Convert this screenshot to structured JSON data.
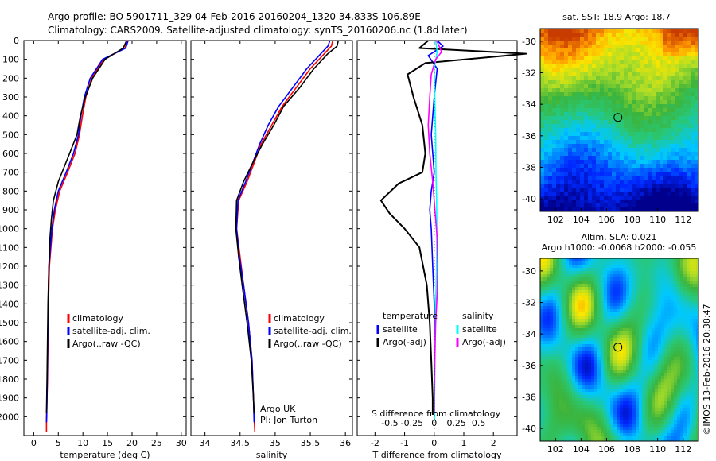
{
  "header": {
    "line1": "Argo profile: BO 5901711_329 04-Feb-2016 20160204_1320 34.833S 106.89E",
    "line2": "Climatology: CARS2009. Satellite-adjusted climatology: synTS_20160206.nc (1.8d later)"
  },
  "colors": {
    "climatology": "#ff0000",
    "satellite": "#0000ff",
    "argo": "#000000",
    "sal_satellite": "#00ffff",
    "sal_argo": "#ff00ff"
  },
  "chart_data": [
    {
      "type": "line",
      "xlabel": "temperature (deg C)",
      "ylabel": "",
      "xlim": [
        -2,
        31
      ],
      "ylim": [
        2100,
        0
      ],
      "xticks": [
        "0",
        "5",
        "10",
        "15",
        "20",
        "25",
        "30"
      ],
      "xtick_values": [
        0,
        5,
        10,
        15,
        20,
        25,
        30
      ],
      "yticks": [
        "0",
        "100",
        "200",
        "300",
        "400",
        "500",
        "600",
        "700",
        "800",
        "900",
        "1000",
        "1100",
        "1200",
        "1300",
        "1400",
        "1500",
        "1600",
        "1700",
        "1800",
        "1900",
        "2000"
      ],
      "ytick_values": [
        0,
        100,
        200,
        300,
        400,
        500,
        600,
        700,
        800,
        900,
        1000,
        1100,
        1200,
        1300,
        1400,
        1500,
        1600,
        1700,
        1800,
        1900,
        2000
      ],
      "legend": [
        "climatology",
        "satellite-adj. clim.",
        "Argo(..raw -QC)"
      ],
      "series": [
        {
          "name": "climatology",
          "color": "#ff0000",
          "x": [
            19.0,
            18.6,
            14.2,
            11.8,
            10.6,
            9.9,
            9.3,
            8.4,
            6.9,
            5.3,
            4.4,
            3.8,
            3.5,
            3.2,
            3.0,
            2.9,
            2.8,
            2.7,
            2.6,
            2.6,
            2.6
          ],
          "y": [
            0,
            40,
            100,
            200,
            300,
            400,
            500,
            600,
            700,
            800,
            900,
            1000,
            1100,
            1200,
            1400,
            1600,
            1800,
            1900,
            2000,
            2050,
            2080
          ]
        },
        {
          "name": "satellite-adj. clim.",
          "color": "#0000ff",
          "x": [
            19.2,
            18.7,
            14.0,
            11.5,
            10.3,
            9.6,
            9.1,
            8.1,
            6.6,
            5.0,
            4.2,
            3.7,
            3.4,
            3.1,
            2.95,
            2.85,
            2.75,
            2.7,
            2.65,
            2.6
          ],
          "y": [
            0,
            40,
            100,
            200,
            300,
            400,
            500,
            600,
            700,
            800,
            900,
            1000,
            1100,
            1200,
            1400,
            1600,
            1800,
            1900,
            2000,
            2030
          ]
        },
        {
          "name": "Argo(..raw -QC)",
          "color": "#000000",
          "x": [
            18.9,
            18.2,
            14.5,
            12.0,
            10.5,
            9.5,
            8.8,
            7.3,
            5.0,
            4.0,
            3.6,
            3.3,
            3.1,
            2.9,
            2.8,
            2.7,
            2.6
          ],
          "y": [
            0,
            40,
            100,
            200,
            300,
            400,
            500,
            600,
            750,
            850,
            950,
            1050,
            1200,
            1400,
            1600,
            1800,
            1980
          ]
        }
      ]
    },
    {
      "type": "line",
      "xlabel": "salinity",
      "xlim": [
        33.8,
        36.1
      ],
      "ylim": [
        2100,
        0
      ],
      "xticks": [
        "34",
        "34.5",
        "35",
        "35.5",
        "36"
      ],
      "xtick_values": [
        34,
        34.5,
        35,
        35.5,
        36
      ],
      "legend": [
        "climatology",
        "satellite-adj. clim.",
        "Argo(..raw -QC)"
      ],
      "annotation": [
        "Argo UK",
        "PI: Jon Turton"
      ],
      "series": [
        {
          "name": "climatology",
          "color": "#ff0000",
          "x": [
            35.82,
            35.8,
            35.7,
            35.5,
            35.3,
            35.1,
            34.95,
            34.8,
            34.7,
            34.6,
            34.48,
            34.45,
            34.5,
            34.55,
            34.62,
            34.67,
            34.69,
            34.7,
            34.71
          ],
          "y": [
            0,
            30,
            70,
            150,
            250,
            350,
            450,
            550,
            650,
            750,
            850,
            1000,
            1150,
            1300,
            1500,
            1700,
            1900,
            2000,
            2080
          ]
        },
        {
          "name": "satellite-adj. clim.",
          "color": "#0000ff",
          "x": [
            35.78,
            35.75,
            35.65,
            35.45,
            35.25,
            35.05,
            34.9,
            34.78,
            34.68,
            34.58,
            34.47,
            34.45,
            34.49,
            34.55,
            34.62,
            34.67,
            34.69,
            34.7
          ],
          "y": [
            0,
            30,
            70,
            150,
            250,
            350,
            450,
            550,
            650,
            750,
            850,
            1000,
            1150,
            1300,
            1500,
            1700,
            1900,
            2030
          ]
        },
        {
          "name": "Argo(..raw -QC)",
          "color": "#000000",
          "x": [
            35.9,
            35.88,
            35.75,
            35.55,
            35.35,
            35.12,
            34.98,
            34.82,
            34.68,
            34.55,
            34.45,
            34.44,
            34.48,
            34.53,
            34.6,
            34.66,
            34.69,
            34.7
          ],
          "y": [
            0,
            30,
            70,
            150,
            250,
            350,
            450,
            550,
            650,
            750,
            850,
            1000,
            1150,
            1300,
            1500,
            1700,
            1900,
            1980
          ]
        }
      ]
    },
    {
      "type": "line",
      "xlabel": "T difference from climatology",
      "xlabel2": "S difference from climatology",
      "xlim": [
        -2.6,
        2.8
      ],
      "ylim": [
        2100,
        0
      ],
      "xticks": [
        "-2",
        "-1",
        "0",
        "1",
        "2"
      ],
      "xtick_values": [
        -2,
        -1,
        0,
        1,
        2
      ],
      "xticks_top": [
        "-0.5",
        "-0.25",
        "0",
        "0.25",
        "0.5"
      ],
      "xtick_top_values": [
        -0.5,
        -0.25,
        0,
        0.25,
        0.5
      ],
      "legend_left_title": "temperature",
      "legend_right_title": "salinity",
      "legend_left": [
        "satellite",
        "Argo(-adj)"
      ],
      "legend_right": [
        "satellite",
        "Argo(-adj)"
      ],
      "series": [
        {
          "name": "T satellite",
          "color": "#0000ff",
          "x": [
            0.1,
            0.3,
            -0.2,
            0.1,
            0.0,
            -0.1,
            0.0,
            -0.1,
            -0.15,
            -0.1,
            -0.05,
            0.0,
            0.0,
            0.0,
            0.0,
            0.0
          ],
          "y": [
            0,
            30,
            80,
            150,
            300,
            500,
            700,
            800,
            900,
            1000,
            1200,
            1400,
            1600,
            1800,
            1950,
            2020
          ]
        },
        {
          "name": "T Argo(-adj)",
          "color": "#000000",
          "x": [
            -0.2,
            -0.5,
            3.1,
            -0.3,
            -0.9,
            -0.7,
            -0.4,
            -0.3,
            -0.4,
            -1.2,
            -1.8,
            -1.5,
            -1.0,
            -0.5,
            -0.25,
            -0.15,
            -0.1,
            -0.05,
            -0.05
          ],
          "y": [
            0,
            40,
            70,
            120,
            180,
            300,
            450,
            600,
            700,
            760,
            850,
            920,
            1000,
            1100,
            1300,
            1500,
            1700,
            1900,
            1990
          ]
        },
        {
          "name": "S satellite",
          "color": "#00ffff",
          "x": [
            0.05,
            0.1,
            0.0,
            0.02,
            0.05,
            0.06,
            0.08,
            0.09,
            0.08,
            0.05,
            0.03,
            0.02,
            0.01,
            0.01
          ],
          "y": [
            0,
            60,
            150,
            300,
            500,
            700,
            850,
            1000,
            1200,
            1400,
            1600,
            1800,
            1950,
            2020
          ]
        },
        {
          "name": "S Argo(-adj)",
          "color": "#ff00ff",
          "x": [
            0.08,
            0.25,
            0.05,
            -0.1,
            -0.15,
            -0.2,
            -0.15,
            -0.05,
            0.0,
            0.05,
            0.1,
            0.12,
            0.1,
            0.05,
            0.02,
            0.0,
            0.0
          ],
          "y": [
            0,
            60,
            100,
            180,
            300,
            450,
            600,
            750,
            850,
            950,
            1050,
            1200,
            1350,
            1500,
            1700,
            1900,
            1980
          ]
        }
      ]
    },
    {
      "type": "heatmap",
      "title": "sat. SST: 18.9  Argo: 18.7",
      "xticks": [
        "102",
        "104",
        "106",
        "108",
        "110",
        "112"
      ],
      "xtick_values": [
        102,
        104,
        106,
        108,
        110,
        112
      ],
      "yticks": [
        "-30",
        "-32",
        "-34",
        "-36",
        "-38",
        "-40"
      ],
      "ytick_values": [
        -30,
        -32,
        -34,
        -36,
        -38,
        -40
      ],
      "xlim": [
        100.8,
        113.2
      ],
      "ylim": [
        -40.8,
        -29.2
      ],
      "marker": [
        106.89,
        -34.833
      ]
    },
    {
      "type": "heatmap",
      "title": "Altim. SLA: 0.021",
      "subtitle": "Argo h1000: -0.0068 h2000: -0.055",
      "xticks": [
        "102",
        "104",
        "106",
        "108",
        "110",
        "112"
      ],
      "xtick_values": [
        102,
        104,
        106,
        108,
        110,
        112
      ],
      "yticks": [
        "-30",
        "-32",
        "-34",
        "-36",
        "-38",
        "-40"
      ],
      "ytick_values": [
        -30,
        -32,
        -34,
        -36,
        -38,
        -40
      ],
      "xlim": [
        100.8,
        113.2
      ],
      "ylim": [
        -40.8,
        -29.2
      ],
      "marker": [
        106.89,
        -34.833
      ],
      "side_label": "©IMOS 13-Feb-2016 20:38:47"
    }
  ]
}
